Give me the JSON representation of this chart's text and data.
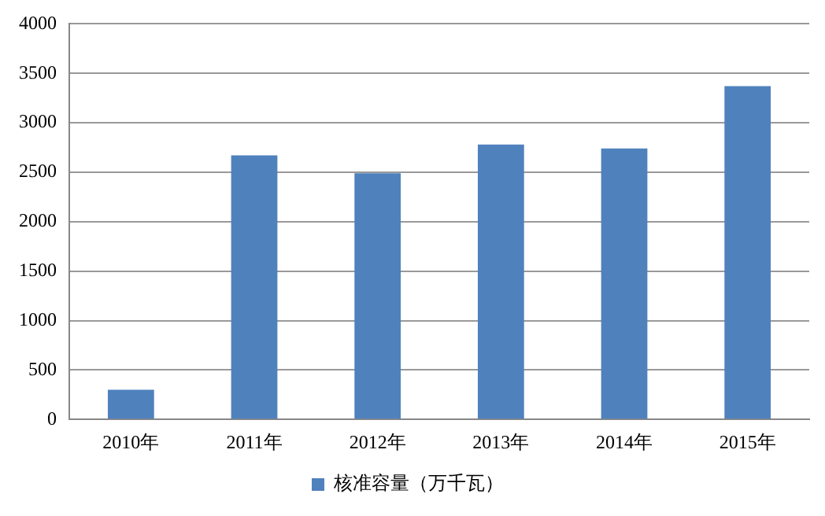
{
  "chart_data": {
    "type": "bar",
    "categories": [
      "2010年",
      "2011年",
      "2012年",
      "2013年",
      "2014年",
      "2015年"
    ],
    "series": [
      {
        "name": "核准容量（万千瓦）",
        "color": "#4f81bd",
        "values": [
          300,
          2670,
          2490,
          2780,
          2740,
          3370
        ]
      }
    ],
    "ylim": [
      0,
      4000
    ],
    "yticks": [
      0,
      500,
      1000,
      1500,
      2000,
      2500,
      3000,
      3500,
      4000
    ],
    "grid": "y",
    "legend": "bottom"
  }
}
